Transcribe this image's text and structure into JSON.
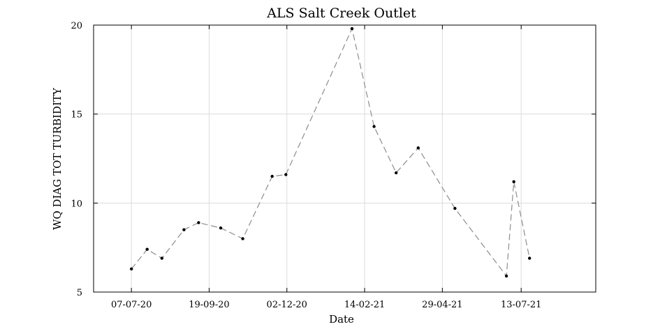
{
  "chart_data": {
    "type": "line",
    "title": "ALS Salt Creek Outlet",
    "xlabel": "Date",
    "ylabel": "WQ DIAG TOT TURBIDITY",
    "x_type": "date",
    "xlim": [
      "2020-06-01",
      "2021-09-22"
    ],
    "ylim": [
      5,
      20
    ],
    "x_ticks": [
      "2020-07-07",
      "2020-09-19",
      "2020-12-02",
      "2021-02-14",
      "2021-04-29",
      "2021-07-13"
    ],
    "x_tick_labels": [
      "07-07-20",
      "19-09-20",
      "02-12-20",
      "14-02-21",
      "29-04-21",
      "13-07-21"
    ],
    "y_ticks": [
      5,
      10,
      15,
      20
    ],
    "y_tick_labels": [
      "5",
      "10",
      "15",
      "20"
    ],
    "grid": true,
    "line_style": "dashed",
    "line_color": "#8c8c8c",
    "marker_color": "#000000",
    "series": [
      {
        "x": [
          "2020-07-07",
          "2020-07-22",
          "2020-08-05",
          "2020-08-26",
          "2020-09-09",
          "2020-09-30",
          "2020-10-21",
          "2020-11-18",
          "2020-12-01",
          "2021-02-02",
          "2021-02-23",
          "2021-03-16",
          "2021-04-06",
          "2021-05-11",
          "2021-06-29",
          "2021-07-06",
          "2021-07-21"
        ],
        "y": [
          6.3,
          7.4,
          6.9,
          8.5,
          8.9,
          8.6,
          8.0,
          11.5,
          11.6,
          19.8,
          14.3,
          11.7,
          13.1,
          9.7,
          5.9,
          11.2,
          6.9
        ]
      }
    ]
  }
}
